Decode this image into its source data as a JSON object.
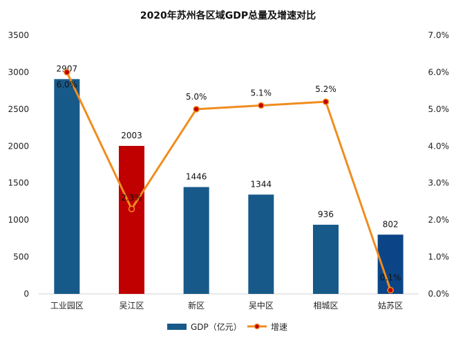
{
  "chart_data": {
    "type": "bar",
    "title": "2020年苏州各区域GDP总量及增速对比",
    "categories": [
      "工业园区",
      "吴江区",
      "新区",
      "吴中区",
      "相城区",
      "姑苏区"
    ],
    "left_axis": {
      "min": 0,
      "max": 3500,
      "step": 500,
      "ticks": [
        "0",
        "500",
        "1000",
        "1500",
        "2000",
        "2500",
        "3000",
        "3500"
      ]
    },
    "right_axis": {
      "min": 0,
      "max": 7,
      "step": 1,
      "ticks": [
        "0.0%",
        "1.0%",
        "2.0%",
        "3.0%",
        "4.0%",
        "5.0%",
        "6.0%",
        "7.0%"
      ]
    },
    "series": [
      {
        "name": "GDP（亿元）",
        "type": "bar",
        "axis": "left",
        "values": [
          2907,
          2003,
          1446,
          1344,
          936,
          802
        ],
        "labels": [
          "2907",
          "2003",
          "1446",
          "1344",
          "936",
          "802"
        ],
        "color": "#175a8a",
        "bar_colors": [
          "#175a8a",
          "#c00000",
          "#175a8a",
          "#175a8a",
          "#175a8a",
          "#0b4587"
        ]
      },
      {
        "name": "增速",
        "type": "line",
        "axis": "right",
        "values": [
          6.0,
          2.3,
          5.0,
          5.1,
          5.2,
          0.1
        ],
        "labels": [
          "6.0%",
          "2.3%",
          "5.0%",
          "5.1%",
          "5.2%",
          "0.1%"
        ],
        "color": "#f08c1e",
        "marker_color": "#c00000"
      }
    ],
    "grid": false,
    "legend": "bottom"
  }
}
